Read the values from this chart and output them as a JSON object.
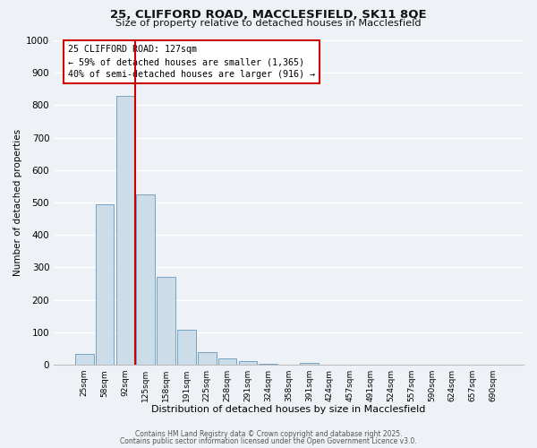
{
  "title_line1": "25, CLIFFORD ROAD, MACCLESFIELD, SK11 8QE",
  "title_line2": "Size of property relative to detached houses in Macclesfield",
  "xlabel": "Distribution of detached houses by size in Macclesfield",
  "ylabel": "Number of detached properties",
  "bar_labels": [
    "25sqm",
    "58sqm",
    "92sqm",
    "125sqm",
    "158sqm",
    "191sqm",
    "225sqm",
    "258sqm",
    "291sqm",
    "324sqm",
    "358sqm",
    "391sqm",
    "424sqm",
    "457sqm",
    "491sqm",
    "524sqm",
    "557sqm",
    "590sqm",
    "624sqm",
    "657sqm",
    "690sqm"
  ],
  "bar_values": [
    33,
    495,
    830,
    525,
    272,
    108,
    40,
    20,
    10,
    3,
    0,
    5,
    0,
    0,
    0,
    0,
    0,
    0,
    0,
    0,
    0
  ],
  "bar_color": "#ccdce8",
  "bar_edge_color": "#6699bb",
  "property_line_x": 3,
  "property_line_color": "#cc0000",
  "annotation_line1": "25 CLIFFORD ROAD: 127sqm",
  "annotation_line2": "← 59% of detached houses are smaller (1,365)",
  "annotation_line3": "40% of semi-detached houses are larger (916) →",
  "ylim_max": 1000,
  "yticks": [
    0,
    100,
    200,
    300,
    400,
    500,
    600,
    700,
    800,
    900,
    1000
  ],
  "background_color": "#eef2f7",
  "grid_color": "#ffffff",
  "footer_line1": "Contains HM Land Registry data © Crown copyright and database right 2025.",
  "footer_line2": "Contains public sector information licensed under the Open Government Licence v3.0."
}
